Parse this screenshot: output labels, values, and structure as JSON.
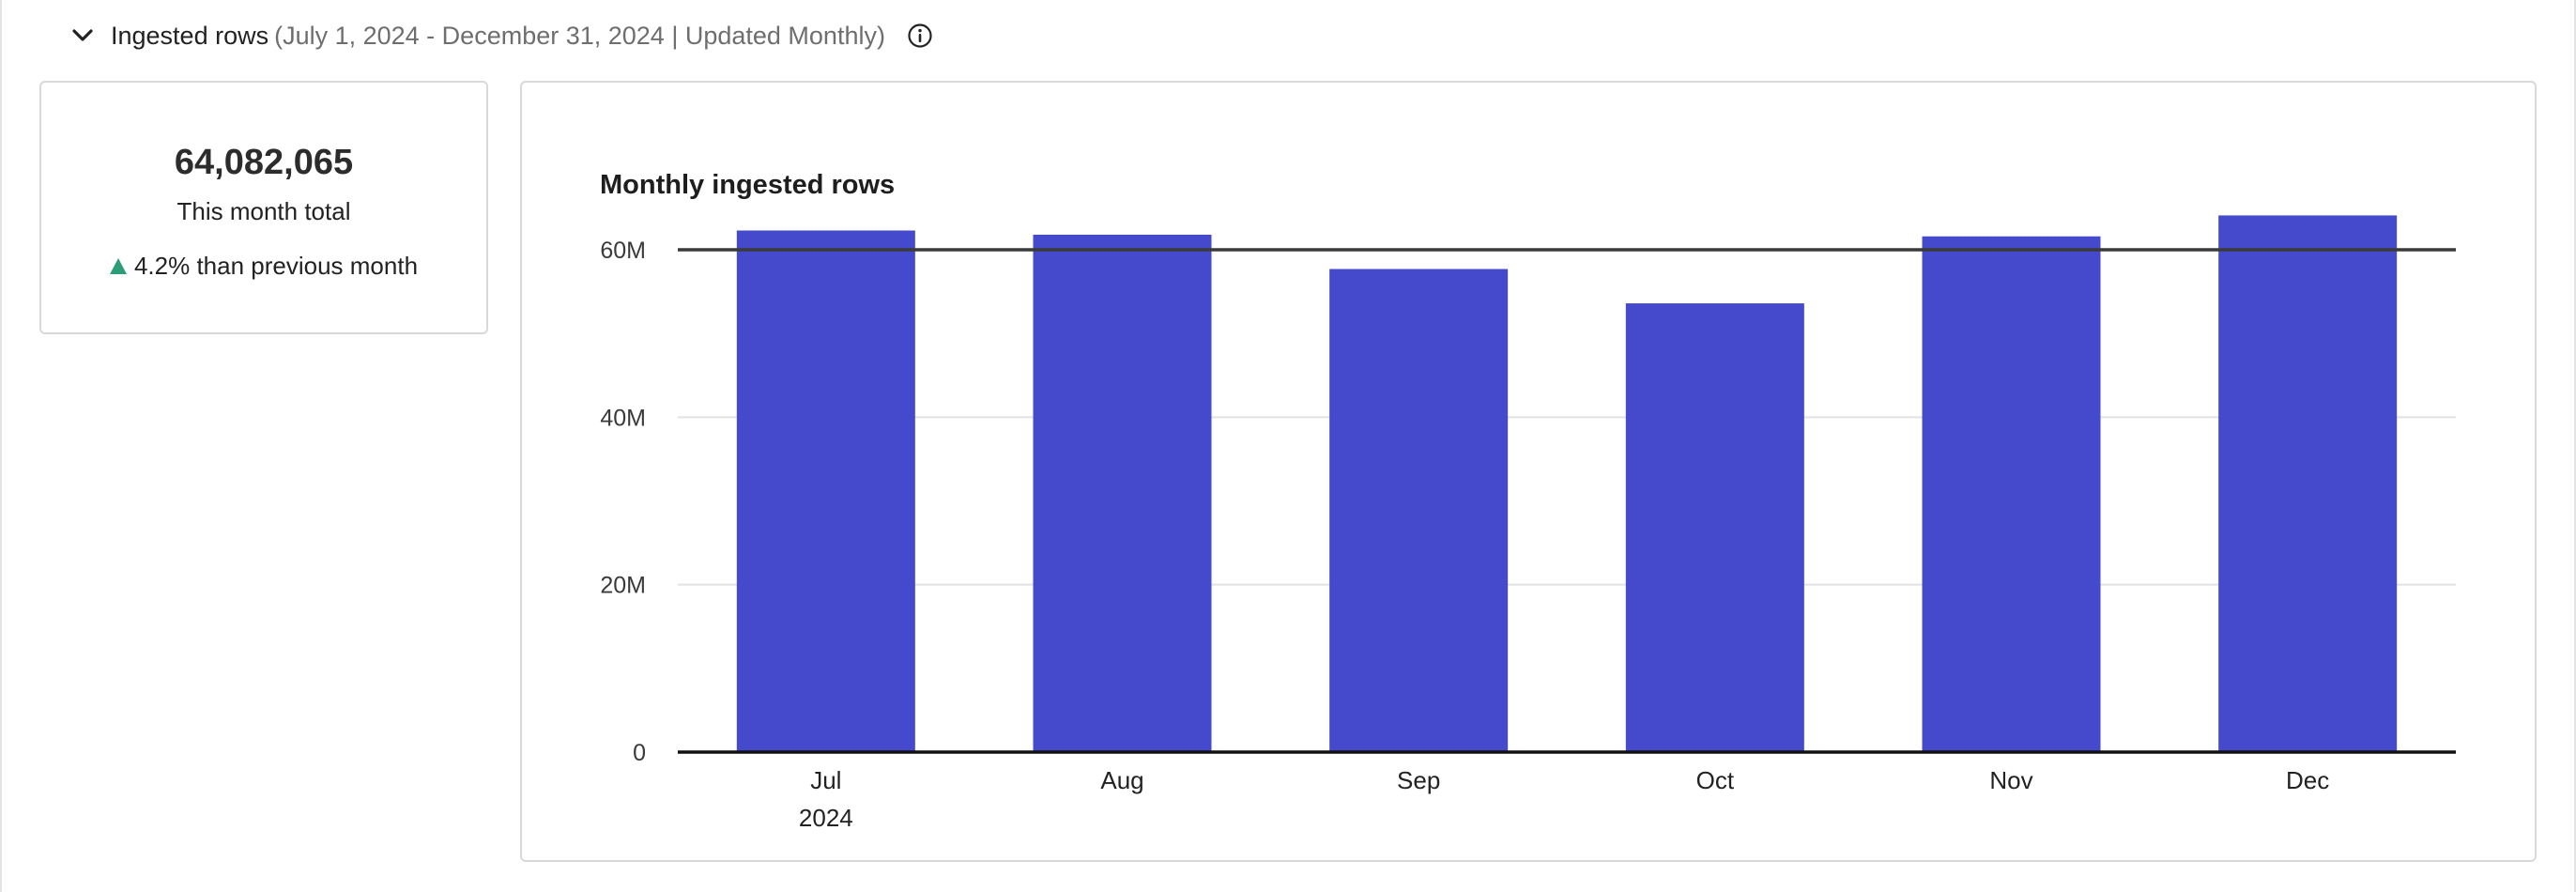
{
  "header": {
    "title": "Ingested rows",
    "meta": "(July 1, 2024 - December 31, 2024 | Updated Monthly)",
    "chevron_icon": "chevron-down-icon",
    "info_icon": "info-icon"
  },
  "kpi": {
    "value": "64,082,065",
    "label": "This month total",
    "change": "4.2% than previous month",
    "change_direction": "up",
    "change_color": "#2d9d78"
  },
  "chart_data": {
    "type": "bar",
    "title": "Monthly ingested rows",
    "categories": [
      "Jul",
      "Aug",
      "Sep",
      "Oct",
      "Nov",
      "Dec"
    ],
    "sub_label": "2024",
    "values": [
      62300000,
      61800000,
      57700000,
      53600000,
      61600000,
      64100000
    ],
    "ylim": [
      0,
      60000000
    ],
    "yticks": [
      {
        "value": 0,
        "label": "0"
      },
      {
        "value": 20000000,
        "label": "20M"
      },
      {
        "value": 40000000,
        "label": "40M"
      },
      {
        "value": 60000000,
        "label": "60M"
      }
    ],
    "threshold": 60000000,
    "bar_color": "#4549cc",
    "grid": true
  }
}
